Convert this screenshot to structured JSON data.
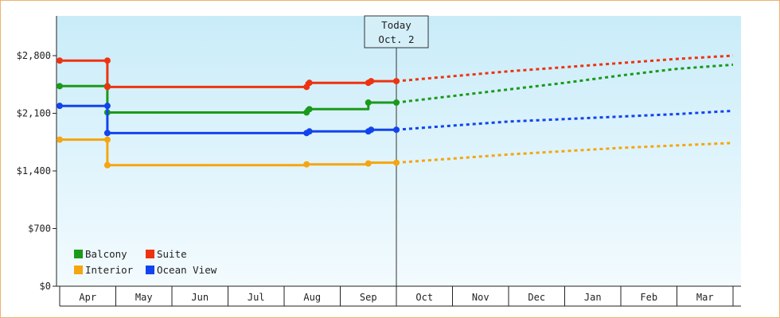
{
  "chart_data": {
    "type": "line",
    "x_categories": [
      "Apr",
      "May",
      "Jun",
      "Jul",
      "Aug",
      "Sep",
      "Oct",
      "Nov",
      "Dec",
      "Jan",
      "Feb",
      "Mar"
    ],
    "y_ticks": [
      "$0",
      "$700",
      "$1,400",
      "$2,100",
      "$2,800"
    ],
    "ylim": [
      0,
      2800
    ],
    "grid": false,
    "legend_position": "bottom-left",
    "today_marker": {
      "line1": "Today",
      "line2": "Oct. 2",
      "month_pos": 6.0
    },
    "series": [
      {
        "name": "Balcony",
        "color": "#1a9a1a",
        "history": [
          [
            0.0,
            2430
          ],
          [
            0.85,
            2430
          ],
          [
            0.85,
            2110
          ],
          [
            4.4,
            2110
          ],
          [
            4.4,
            2150
          ],
          [
            5.5,
            2150
          ],
          [
            5.5,
            2230
          ],
          [
            6.0,
            2230
          ]
        ],
        "markers": [
          [
            0.0,
            2430
          ],
          [
            0.85,
            2430
          ],
          [
            0.85,
            2110
          ],
          [
            4.4,
            2110
          ],
          [
            4.45,
            2150
          ],
          [
            5.5,
            2230
          ],
          [
            6.0,
            2230
          ]
        ],
        "forecast": [
          [
            6.0,
            2230
          ],
          [
            7.0,
            2310
          ],
          [
            8.0,
            2390
          ],
          [
            9.0,
            2470
          ],
          [
            10.0,
            2560
          ],
          [
            11.0,
            2640
          ],
          [
            12.0,
            2690
          ]
        ]
      },
      {
        "name": "Suite",
        "color": "#ee3311",
        "history": [
          [
            0.0,
            2740
          ],
          [
            0.85,
            2740
          ],
          [
            0.85,
            2420
          ],
          [
            4.4,
            2420
          ],
          [
            4.4,
            2470
          ],
          [
            5.5,
            2470
          ],
          [
            5.5,
            2490
          ],
          [
            6.0,
            2490
          ]
        ],
        "markers": [
          [
            0.0,
            2740
          ],
          [
            0.85,
            2740
          ],
          [
            0.85,
            2420
          ],
          [
            4.4,
            2420
          ],
          [
            4.45,
            2470
          ],
          [
            5.5,
            2470
          ],
          [
            5.55,
            2490
          ],
          [
            6.0,
            2490
          ]
        ],
        "forecast": [
          [
            6.0,
            2490
          ],
          [
            7.0,
            2550
          ],
          [
            8.0,
            2610
          ],
          [
            9.0,
            2660
          ],
          [
            10.0,
            2710
          ],
          [
            11.0,
            2760
          ],
          [
            12.0,
            2800
          ]
        ]
      },
      {
        "name": "Interior",
        "color": "#f5a510",
        "history": [
          [
            0.0,
            1780
          ],
          [
            0.85,
            1780
          ],
          [
            0.85,
            1470
          ],
          [
            4.4,
            1470
          ],
          [
            4.4,
            1480
          ],
          [
            5.5,
            1480
          ],
          [
            5.5,
            1500
          ],
          [
            6.0,
            1500
          ]
        ],
        "markers": [
          [
            0.0,
            1780
          ],
          [
            0.85,
            1780
          ],
          [
            0.85,
            1470
          ],
          [
            4.4,
            1480
          ],
          [
            5.5,
            1490
          ],
          [
            6.0,
            1500
          ]
        ],
        "forecast": [
          [
            6.0,
            1500
          ],
          [
            7.0,
            1550
          ],
          [
            8.0,
            1600
          ],
          [
            9.0,
            1640
          ],
          [
            10.0,
            1680
          ],
          [
            11.0,
            1710
          ],
          [
            12.0,
            1740
          ]
        ]
      },
      {
        "name": "Ocean View",
        "color": "#1144ee",
        "history": [
          [
            0.0,
            2190
          ],
          [
            0.85,
            2190
          ],
          [
            0.85,
            1860
          ],
          [
            4.4,
            1860
          ],
          [
            4.4,
            1880
          ],
          [
            5.5,
            1880
          ],
          [
            5.5,
            1900
          ],
          [
            6.0,
            1900
          ]
        ],
        "markers": [
          [
            0.0,
            2190
          ],
          [
            0.85,
            2190
          ],
          [
            0.85,
            1860
          ],
          [
            4.4,
            1860
          ],
          [
            4.45,
            1880
          ],
          [
            5.5,
            1880
          ],
          [
            5.55,
            1900
          ],
          [
            6.0,
            1900
          ]
        ],
        "forecast": [
          [
            6.0,
            1900
          ],
          [
            7.0,
            1950
          ],
          [
            8.0,
            2000
          ],
          [
            9.0,
            2030
          ],
          [
            10.0,
            2060
          ],
          [
            11.0,
            2090
          ],
          [
            12.0,
            2130
          ]
        ]
      }
    ]
  }
}
